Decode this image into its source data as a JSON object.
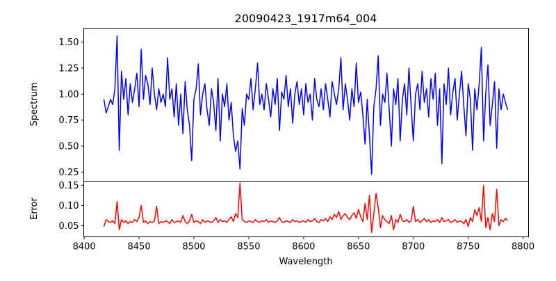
{
  "chart_data": [
    {
      "type": "line",
      "title": "20090423_1917m64_004",
      "ylabel": "Spectrum",
      "xlabel": "",
      "xlim": [
        8399.6,
        8805
      ],
      "ylim": [
        0.163,
        1.634
      ],
      "yticks": [
        0.25,
        0.5,
        0.75,
        1.0,
        1.25,
        1.5
      ],
      "ytick_labels": [
        "0.25",
        "0.50",
        "0.75",
        "1.00",
        "1.25",
        "1.50"
      ],
      "color": "#0000ff",
      "x_start": 8418,
      "x_step": 2,
      "values": [
        0.95,
        0.82,
        0.88,
        0.95,
        0.9,
        1.05,
        1.56,
        0.46,
        1.22,
        0.95,
        1.15,
        0.8,
        1.1,
        0.92,
        1.05,
        1.2,
        0.88,
        1.43,
        0.95,
        1.18,
        1.1,
        0.9,
        1.25,
        1.0,
        0.85,
        1.05,
        0.92,
        1.0,
        0.88,
        1.35,
        0.95,
        1.05,
        0.78,
        1.1,
        0.7,
        1.0,
        0.62,
        1.12,
        0.85,
        0.7,
        0.36,
        0.95,
        1.05,
        1.29,
        0.8,
        1.0,
        1.1,
        0.85,
        0.7,
        1.05,
        0.92,
        0.65,
        1.15,
        0.55,
        1.0,
        0.88,
        1.1,
        0.75,
        0.92,
        0.6,
        0.45,
        0.55,
        0.28,
        0.86,
        0.7,
        1.0,
        0.95,
        1.15,
        0.85,
        1.05,
        1.3,
        0.9,
        1.0,
        0.85,
        1.1,
        0.95,
        0.78,
        1.05,
        0.9,
        1.15,
        0.65,
        1.02,
        0.95,
        1.18,
        0.88,
        1.05,
        0.72,
        1.0,
        1.12,
        0.9,
        1.05,
        0.8,
        1.1,
        0.92,
        1.0,
        0.75,
        1.15,
        0.95,
        0.88,
        1.05,
        0.85,
        1.1,
        0.95,
        0.78,
        1.12,
        1.0,
        0.9,
        1.05,
        1.35,
        0.85,
        1.1,
        0.95,
        0.75,
        1.05,
        0.88,
        1.3,
        0.92,
        1.02,
        0.8,
        0.52,
        0.95,
        0.6,
        0.23,
        0.88,
        1.05,
        1.37,
        0.7,
        1.0,
        0.92,
        1.2,
        0.85,
        0.5,
        1.05,
        0.9,
        1.15,
        0.55,
        0.95,
        1.1,
        0.8,
        1.25,
        0.88,
        0.55,
        1.0,
        1.1,
        0.85,
        1.22,
        0.92,
        1.05,
        0.78,
        1.15,
        0.95,
        1.2,
        0.7,
        1.05,
        0.33,
        1.1,
        0.9,
        1.25,
        0.8,
        1.02,
        1.15,
        0.75,
        1.0,
        1.22,
        0.88,
        0.6,
        1.1,
        0.95,
        0.46,
        1.05,
        0.85,
        1.1,
        1.45,
        0.55,
        1.0,
        1.28,
        0.7,
        0.9,
        1.12,
        0.48,
        1.05,
        0.85,
        1.0,
        0.92,
        0.85
      ]
    },
    {
      "type": "line",
      "title": "",
      "ylabel": "Error",
      "xlabel": "Wavelength",
      "xlim": [
        8399.6,
        8805
      ],
      "ylim": [
        0.0224,
        0.16
      ],
      "yticks": [
        0.05,
        0.1,
        0.15
      ],
      "ytick_labels": [
        "0.05",
        "0.10",
        "0.15"
      ],
      "xticks": [
        8400,
        8450,
        8500,
        8550,
        8600,
        8650,
        8700,
        8750,
        8800
      ],
      "xtick_labels": [
        "8400",
        "8450",
        "8500",
        "8550",
        "8600",
        "8650",
        "8700",
        "8750",
        "8800"
      ],
      "color": "#ff0000",
      "x_start": 8418,
      "x_step": 2,
      "values": [
        0.048,
        0.065,
        0.06,
        0.058,
        0.062,
        0.055,
        0.11,
        0.04,
        0.065,
        0.058,
        0.062,
        0.055,
        0.06,
        0.058,
        0.065,
        0.06,
        0.07,
        0.1,
        0.058,
        0.062,
        0.055,
        0.06,
        0.058,
        0.062,
        0.098,
        0.055,
        0.06,
        0.058,
        0.062,
        0.06,
        0.055,
        0.065,
        0.058,
        0.06,
        0.062,
        0.058,
        0.075,
        0.06,
        0.055,
        0.062,
        0.078,
        0.058,
        0.062,
        0.06,
        0.055,
        0.065,
        0.058,
        0.062,
        0.06,
        0.058,
        0.062,
        0.07,
        0.058,
        0.065,
        0.06,
        0.062,
        0.058,
        0.065,
        0.072,
        0.06,
        0.08,
        0.07,
        0.155,
        0.065,
        0.06,
        0.058,
        0.062,
        0.06,
        0.058,
        0.065,
        0.06,
        0.058,
        0.062,
        0.06,
        0.065,
        0.058,
        0.062,
        0.06,
        0.058,
        0.062,
        0.07,
        0.06,
        0.058,
        0.062,
        0.06,
        0.058,
        0.065,
        0.06,
        0.062,
        0.058,
        0.06,
        0.062,
        0.058,
        0.065,
        0.06,
        0.062,
        0.068,
        0.06,
        0.058,
        0.065,
        0.062,
        0.068,
        0.06,
        0.072,
        0.065,
        0.078,
        0.07,
        0.085,
        0.065,
        0.075,
        0.08,
        0.07,
        0.065,
        0.075,
        0.082,
        0.068,
        0.09,
        0.072,
        0.06,
        0.105,
        0.065,
        0.125,
        0.033,
        0.08,
        0.13,
        0.095,
        0.045,
        0.075,
        0.065,
        0.06,
        0.055,
        0.075,
        0.04,
        0.065,
        0.058,
        0.078,
        0.062,
        0.06,
        0.065,
        0.058,
        0.062,
        0.098,
        0.06,
        0.065,
        0.058,
        0.062,
        0.068,
        0.06,
        0.065,
        0.058,
        0.062,
        0.06,
        0.065,
        0.058,
        0.07,
        0.06,
        0.062,
        0.065,
        0.058,
        0.06,
        0.065,
        0.058,
        0.062,
        0.06,
        0.055,
        0.065,
        0.048,
        0.07,
        0.06,
        0.09,
        0.075,
        0.095,
        0.06,
        0.15,
        0.045,
        0.07,
        0.04,
        0.08,
        0.06,
        0.14,
        0.05,
        0.065,
        0.06,
        0.068,
        0.062
      ]
    }
  ]
}
